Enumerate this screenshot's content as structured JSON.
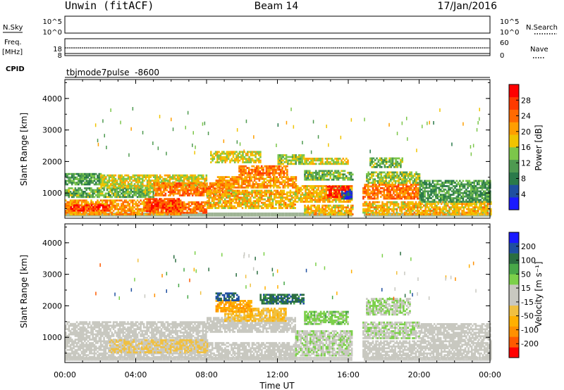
{
  "header": {
    "station": "Unwin (fitACF)",
    "beam": "Beam 14",
    "date": "17/Jan/2016"
  },
  "status_panels": {
    "nsky_label": "N.Sky",
    "nsky_ticks": [
      "10^5",
      "10^0"
    ],
    "nsearch_label": "N.Search",
    "nsearch_ticks": [
      "10^5",
      "10^0"
    ],
    "freq_label": "Freq.",
    "freq_unit": "[MHz]",
    "freq_ticks": [
      "18",
      "8"
    ],
    "nave_label": "Nave",
    "nave_ticks": [
      "60",
      "0"
    ],
    "cpid_label": "CPID",
    "cpid_value": "tbjmode7pulse  -8600"
  },
  "colors": {
    "power": [
      "#1a1aff",
      "#1f4fa0",
      "#2a7a4a",
      "#4e9a50",
      "#7cc64a",
      "#f0c400",
      "#ff9e00",
      "#ff6a00",
      "#ff3a00",
      "#ff0000"
    ],
    "velocity": [
      "#ff0000",
      "#ff5a00",
      "#ff9000",
      "#ffb000",
      "#f0c040",
      "#c8c8c0",
      "#c8c8c0",
      "#7cd04a",
      "#48a848",
      "#2a6e40",
      "#1f4fa0",
      "#1a1aff"
    ]
  },
  "chart_data": [
    {
      "type": "heatmap",
      "panel": "power",
      "ylabel": "Slant Range [km]",
      "y_ticks": [
        "1000",
        "2000",
        "3000",
        "4000"
      ],
      "ylim": [
        200,
        4600
      ],
      "x_ticks": [
        "00:00",
        "04:00",
        "08:00",
        "12:00",
        "16:00",
        "20:00",
        "00:00"
      ],
      "xlim_hours": [
        0,
        24
      ],
      "colorbar_label": "Power [dB]",
      "colorbar_ticks": [
        "4",
        "8",
        "12",
        "16",
        "20",
        "24",
        "28"
      ],
      "colorbar_range": [
        0,
        30
      ],
      "regions": [
        {
          "t0": 0.0,
          "t1": 6.5,
          "r0": 300,
          "r1": 750,
          "val": 20
        },
        {
          "t0": 0.3,
          "t1": 2.5,
          "r0": 420,
          "r1": 620,
          "val": 27
        },
        {
          "t0": 4.5,
          "t1": 6.5,
          "r0": 400,
          "r1": 800,
          "val": 25
        },
        {
          "t0": 6.5,
          "t1": 8.0,
          "r0": 350,
          "r1": 700,
          "val": 22
        },
        {
          "t0": 0.0,
          "t1": 5.0,
          "r0": 850,
          "r1": 1150,
          "val": 12
        },
        {
          "t0": 0.0,
          "t1": 2.0,
          "r0": 1250,
          "r1": 1600,
          "val": 10
        },
        {
          "t0": 2.0,
          "t1": 8.0,
          "r0": 1150,
          "r1": 1550,
          "val": 16
        },
        {
          "t0": 5.0,
          "t1": 9.5,
          "r0": 900,
          "r1": 1300,
          "val": 22
        },
        {
          "t0": 8.0,
          "t1": 13.0,
          "r0": 500,
          "r1": 1100,
          "val": 18
        },
        {
          "t0": 8.5,
          "t1": 13.0,
          "r0": 1150,
          "r1": 1500,
          "val": 20
        },
        {
          "t0": 9.8,
          "t1": 12.5,
          "r0": 1550,
          "r1": 1850,
          "val": 22
        },
        {
          "t0": 8.2,
          "t1": 11.0,
          "r0": 1950,
          "r1": 2300,
          "val": 16
        },
        {
          "t0": 12.0,
          "t1": 13.5,
          "r0": 1900,
          "r1": 2200,
          "val": 14
        },
        {
          "t0": 13.0,
          "t1": 16.2,
          "r0": 700,
          "r1": 1250,
          "val": 18
        },
        {
          "t0": 14.8,
          "t1": 16.0,
          "r0": 850,
          "r1": 1200,
          "val": 28
        },
        {
          "t0": 15.6,
          "t1": 16.2,
          "r0": 800,
          "r1": 1100,
          "val": 4
        },
        {
          "t0": 13.5,
          "t1": 16.2,
          "r0": 1400,
          "r1": 1700,
          "val": 12
        },
        {
          "t0": 13.5,
          "t1": 16.0,
          "r0": 1900,
          "r1": 2100,
          "val": 16
        },
        {
          "t0": 13.5,
          "t1": 16.5,
          "r0": 300,
          "r1": 600,
          "val": 18
        },
        {
          "t0": 16.8,
          "t1": 24.0,
          "r0": 300,
          "r1": 700,
          "val": 18
        },
        {
          "t0": 16.8,
          "t1": 20.0,
          "r0": 800,
          "r1": 1250,
          "val": 22
        },
        {
          "t0": 17.0,
          "t1": 20.0,
          "r0": 1300,
          "r1": 1650,
          "val": 14
        },
        {
          "t0": 20.0,
          "t1": 24.0,
          "r0": 700,
          "r1": 1400,
          "val": 10
        },
        {
          "t0": 17.2,
          "t1": 19.0,
          "r0": 1800,
          "r1": 2100,
          "val": 12
        }
      ]
    },
    {
      "type": "heatmap",
      "panel": "velocity",
      "ylabel": "Slant Range [km]",
      "y_ticks": [
        "1000",
        "2000",
        "3000",
        "4000"
      ],
      "ylim": [
        200,
        4600
      ],
      "x_ticks": [
        "00:00",
        "04:00",
        "08:00",
        "12:00",
        "16:00",
        "20:00",
        "00:00"
      ],
      "xlim_hours": [
        0,
        24
      ],
      "xlabel": "Time UT",
      "colorbar_label": "Velocity [m s⁻¹]",
      "colorbar_ticks": [
        "-200",
        "-100",
        "-50",
        "-15",
        "15",
        "50",
        "100",
        "200"
      ],
      "colorbar_range": [
        -250,
        250
      ],
      "regions": [
        {
          "t0": 0.0,
          "t1": 13.0,
          "r0": 300,
          "r1": 800,
          "val": 0
        },
        {
          "t0": 0.0,
          "t1": 8.0,
          "r0": 850,
          "r1": 1500,
          "val": 0
        },
        {
          "t0": 2.5,
          "t1": 8.0,
          "r0": 500,
          "r1": 900,
          "val": -45
        },
        {
          "t0": 8.0,
          "t1": 13.0,
          "r0": 1150,
          "r1": 1600,
          "val": -10
        },
        {
          "t0": 9.0,
          "t1": 12.5,
          "r0": 1500,
          "r1": 1900,
          "val": -70
        },
        {
          "t0": 8.5,
          "t1": 10.5,
          "r0": 1800,
          "r1": 2150,
          "val": -120
        },
        {
          "t0": 8.5,
          "t1": 9.8,
          "r0": 2150,
          "r1": 2400,
          "val": 180
        },
        {
          "t0": 11.0,
          "t1": 13.5,
          "r0": 2050,
          "r1": 2350,
          "val": 150
        },
        {
          "t0": 13.0,
          "t1": 16.2,
          "r0": 400,
          "r1": 1200,
          "val": 30
        },
        {
          "t0": 13.5,
          "t1": 16.0,
          "r0": 1400,
          "r1": 1800,
          "val": 60
        },
        {
          "t0": 16.8,
          "t1": 24.0,
          "r0": 300,
          "r1": 900,
          "val": 0
        },
        {
          "t0": 16.8,
          "t1": 20.0,
          "r0": 950,
          "r1": 1500,
          "val": 30
        },
        {
          "t0": 20.0,
          "t1": 24.0,
          "r0": 900,
          "r1": 1400,
          "val": 0
        },
        {
          "t0": 17.0,
          "t1": 19.5,
          "r0": 1700,
          "r1": 2200,
          "val": 40
        }
      ]
    }
  ]
}
